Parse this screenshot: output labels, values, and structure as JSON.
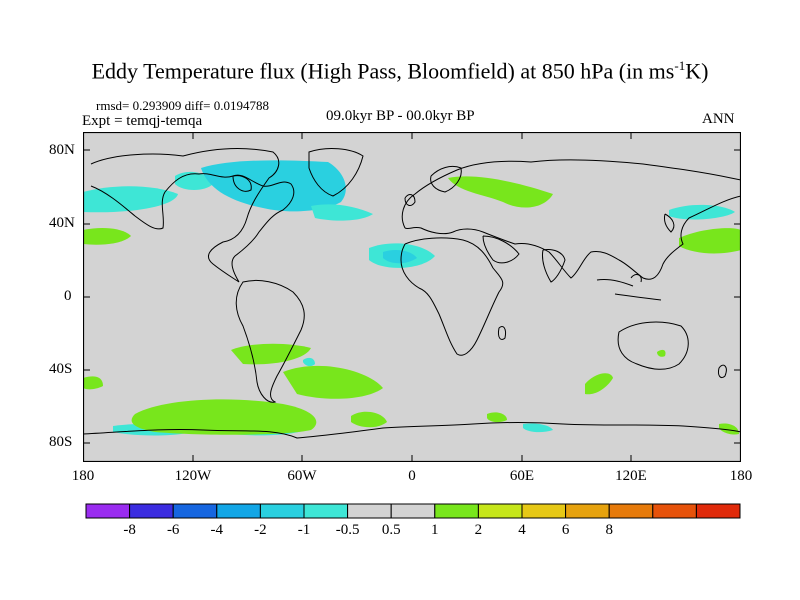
{
  "title": "Eddy Temperature flux (High Pass, Bloomfield) at 850 hPa (in ms",
  "title_units_exp": "-1",
  "title_units_tail": "K)",
  "stats": "rmsd= 0.293909 diff= 0.0194788",
  "experiment": "Expt = temqj-temqa",
  "period": "09.0kyr BP - 00.0kyr BP",
  "season": "ANN",
  "map": {
    "background_color": "#d3d3d3",
    "coastline_color": "#000000",
    "lat_labels": [
      "80N",
      "40N",
      "0",
      "40S",
      "80S"
    ],
    "lon_labels": [
      "180",
      "120W",
      "60W",
      "0",
      "60E",
      "120E",
      "180"
    ]
  },
  "colorbar": {
    "colors": [
      "#9a2cf0",
      "#3b2ce0",
      "#1666e0",
      "#12a6e6",
      "#2ad0e0",
      "#3ee6d6",
      "#d3d3d3",
      "#d3d3d3",
      "#78e61c",
      "#c6e61a",
      "#e6c816",
      "#e6a20e",
      "#e67a0a",
      "#e6520a",
      "#e02a0a"
    ],
    "labels": [
      "-8",
      "-6",
      "-4",
      "-2",
      "-1",
      "-0.5",
      "0.5",
      "1",
      "2",
      "4",
      "6",
      "8"
    ]
  }
}
